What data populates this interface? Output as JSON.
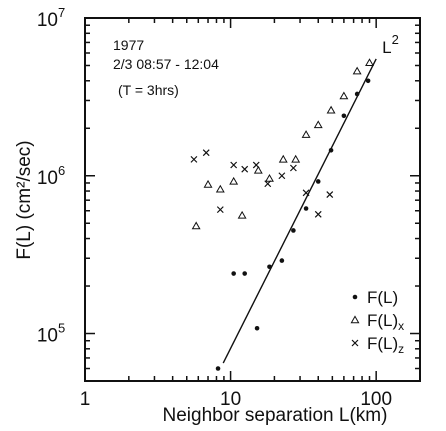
{
  "chart_data": {
    "type": "scatter",
    "title": "",
    "xlabel": "Neighbor separation L(km)",
    "ylabel": "F(L) (cm²/sec)",
    "x_scale": "log",
    "y_scale": "log",
    "xlim": [
      1,
      200
    ],
    "ylim": [
      50000,
      10000000
    ],
    "x_ticks": [
      {
        "value": 1,
        "label": "1"
      },
      {
        "value": 10,
        "label": "10"
      },
      {
        "value": 100,
        "label": "100"
      }
    ],
    "y_ticks": [
      {
        "value": 100000,
        "base": "10",
        "exp": "5"
      },
      {
        "value": 1000000,
        "base": "10",
        "exp": "6"
      },
      {
        "value": 10000000,
        "base": "10",
        "exp": "7"
      }
    ],
    "grid": false,
    "legend_position": "bottom-right",
    "annotation_lines": [
      "1977",
      "2/3 08:57 - 12:04",
      "(T = 3hrs)"
    ],
    "fit_line": {
      "label_base": "L",
      "label_exp": "2",
      "points": [
        [
          8.9,
          65000
        ],
        [
          100,
          5500000
        ]
      ]
    },
    "series": [
      {
        "name": "F(L)",
        "name_main": "F(L)",
        "name_sub": "",
        "marker": "dot",
        "points": [
          [
            8.2,
            60000
          ],
          [
            10.5,
            240000
          ],
          [
            12.5,
            240000
          ],
          [
            15.2,
            108000
          ],
          [
            18.5,
            265000
          ],
          [
            22.5,
            290000
          ],
          [
            27,
            450000
          ],
          [
            33,
            620000
          ],
          [
            40,
            920000
          ],
          [
            49,
            1450000
          ],
          [
            60,
            2400000
          ],
          [
            74,
            3300000
          ],
          [
            88,
            4000000
          ]
        ]
      },
      {
        "name": "F(L)x",
        "name_main": "F(L)",
        "name_sub": "x",
        "marker": "triangle",
        "points": [
          [
            5.8,
            480000
          ],
          [
            7,
            880000
          ],
          [
            8.5,
            820000
          ],
          [
            10.5,
            920000
          ],
          [
            12,
            560000
          ],
          [
            15.5,
            1080000
          ],
          [
            18.5,
            960000
          ],
          [
            23,
            1270000
          ],
          [
            28,
            1270000
          ],
          [
            33,
            1820000
          ],
          [
            40,
            2100000
          ],
          [
            49,
            2600000
          ],
          [
            60,
            3200000
          ],
          [
            74,
            4600000
          ],
          [
            90,
            5200000
          ]
        ]
      },
      {
        "name": "F(L)z",
        "name_main": "F(L)",
        "name_sub": "z",
        "marker": "x",
        "points": [
          [
            5.6,
            1270000
          ],
          [
            6.8,
            1400000
          ],
          [
            8.5,
            610000
          ],
          [
            10.5,
            1170000
          ],
          [
            12.5,
            1100000
          ],
          [
            15,
            1170000
          ],
          [
            18,
            890000
          ],
          [
            22.5,
            1000000
          ],
          [
            27,
            1120000
          ],
          [
            33,
            780000
          ],
          [
            40,
            570000
          ],
          [
            48,
            760000
          ]
        ]
      }
    ]
  }
}
